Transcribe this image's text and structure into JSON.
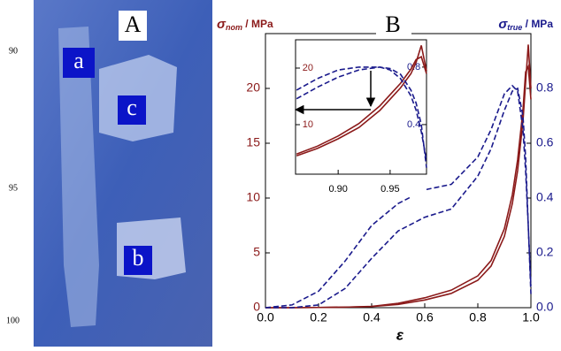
{
  "line_numbers": [
    "90",
    "95",
    "100"
  ],
  "photo": {
    "panel_label": "A",
    "labels": [
      "a",
      "c",
      "b"
    ]
  },
  "chart_data": [
    {
      "type": "line",
      "panel_label": "B",
      "y_label": {
        "symbol": "σ",
        "subscript": "nom",
        "unit": " / MPa"
      },
      "y2_label": {
        "symbol": "σ",
        "subscript": "true",
        "unit": " / MPa"
      },
      "x_label": "ε",
      "xlim": [
        0,
        1
      ],
      "ylim": [
        0,
        25
      ],
      "y2lim": [
        0,
        1
      ],
      "xticks": [
        {
          "value": 0,
          "label": "0.0"
        },
        0.2,
        0.4,
        0.6,
        0.8,
        {
          "value": 1,
          "label": "1.0"
        }
      ],
      "yticks": [
        0,
        5,
        10,
        15,
        20
      ],
      "y2ticks": [
        {
          "value": 0,
          "label": "0.0"
        },
        0.2,
        0.4,
        0.6,
        0.8
      ],
      "x": [
        0,
        0.1,
        0.2,
        0.3,
        0.4,
        0.5,
        0.6,
        0.7,
        0.8,
        0.85,
        0.9,
        0.93,
        0.95,
        0.97,
        0.98,
        0.99,
        1.0
      ],
      "series": [
        {
          "color": "#8b1a1a",
          "dash": false,
          "values": [
            0,
            0,
            0.02,
            0.05,
            0.1,
            0.3,
            0.7,
            1.3,
            2.5,
            3.8,
            6.5,
            9.5,
            12.5,
            17,
            20.5,
            24,
            20
          ]
        },
        {
          "color": "#8b1a1a",
          "dash": false,
          "values": [
            0,
            0,
            0.02,
            0.05,
            0.12,
            0.4,
            0.9,
            1.6,
            2.9,
            4.3,
            7.2,
            10.3,
            13.5,
            18,
            21.5,
            22,
            19
          ]
        },
        {
          "color": "#1a1a8c",
          "dash": true,
          "axis": "y2",
          "values": [
            0,
            0.01,
            0.06,
            0.17,
            0.3,
            0.38,
            0.43,
            0.45,
            0.55,
            0.65,
            0.78,
            0.81,
            0.79,
            0.65,
            0.5,
            0.3,
            0.05
          ]
        },
        {
          "color": "#1a1a8c",
          "dash": true,
          "axis": "y2",
          "values": [
            0,
            0,
            0.01,
            0.07,
            0.18,
            0.28,
            0.33,
            0.36,
            0.48,
            0.58,
            0.72,
            0.79,
            0.8,
            0.7,
            0.55,
            0.3,
            0.08
          ]
        }
      ]
    },
    {
      "type": "line",
      "xlim": [
        0.859,
        0.985
      ],
      "ylim": [
        1.25,
        25
      ],
      "y2lim": [
        0.055,
        0.99
      ],
      "xticks": [
        {
          "value": 0.9,
          "label": "0.90"
        },
        0.95
      ],
      "yticks": [
        10,
        20
      ],
      "y2ticks": [
        0.4,
        0.8
      ],
      "x": [
        0.86,
        0.88,
        0.9,
        0.92,
        0.94,
        0.95,
        0.96,
        0.97,
        0.975,
        0.98,
        0.985
      ],
      "series": [
        {
          "color": "#8b1a1a",
          "dash": false,
          "values": [
            4.5,
            5.8,
            7.5,
            9.5,
            12.5,
            14.5,
            16.5,
            19,
            21,
            24,
            19.5
          ]
        },
        {
          "color": "#8b1a1a",
          "dash": false,
          "values": [
            4.8,
            6.2,
            8,
            10.2,
            13.3,
            15.3,
            17.3,
            19.8,
            21.5,
            22,
            19
          ]
        },
        {
          "color": "#1a1a8c",
          "dash": true,
          "axis": "y2",
          "values": [
            0.64,
            0.72,
            0.78,
            0.8,
            0.8,
            0.78,
            0.72,
            0.6,
            0.5,
            0.35,
            0.15
          ]
        },
        {
          "color": "#1a1a8c",
          "dash": true,
          "axis": "y2",
          "values": [
            0.58,
            0.66,
            0.73,
            0.78,
            0.8,
            0.79,
            0.75,
            0.64,
            0.55,
            0.4,
            0.1
          ]
        }
      ]
    }
  ]
}
